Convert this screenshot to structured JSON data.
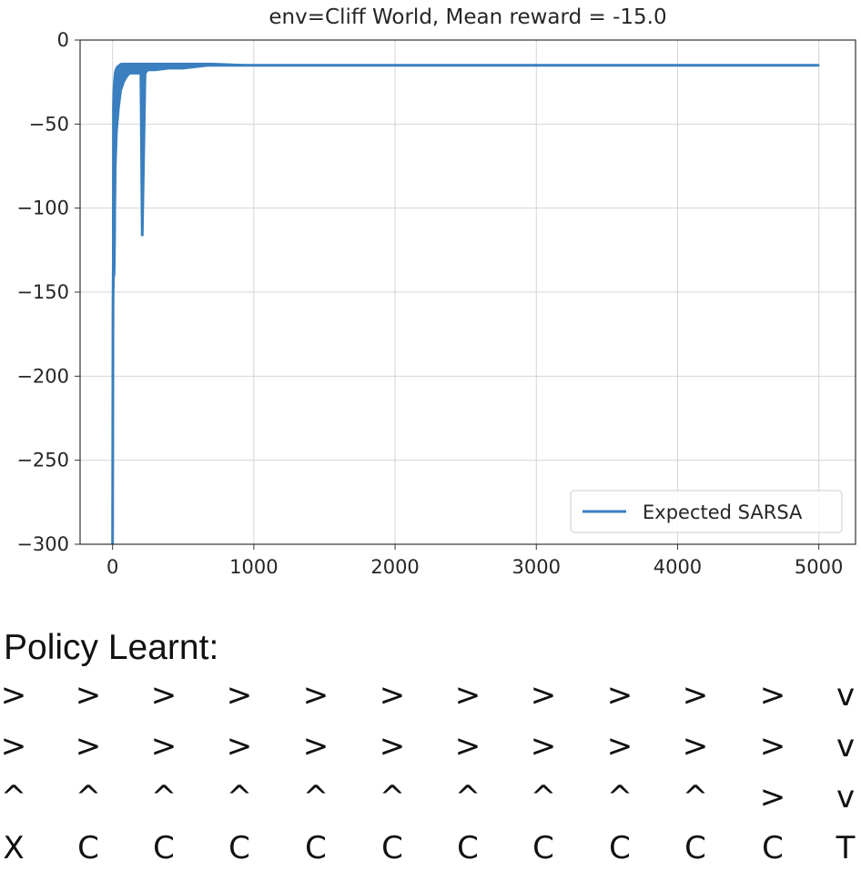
{
  "chart_data": {
    "type": "line",
    "title": "env=Cliff World, Mean reward = -15.0",
    "xlabel": "",
    "ylabel": "",
    "xlim": [
      -230,
      5260
    ],
    "ylim": [
      -300,
      0
    ],
    "x_ticks": [
      0,
      1000,
      2000,
      3000,
      4000,
      5000
    ],
    "y_ticks": [
      0,
      -50,
      -100,
      -150,
      -200,
      -250,
      -300
    ],
    "x_tick_labels": [
      "0",
      "1000",
      "2000",
      "3000",
      "4000",
      "5000"
    ],
    "y_tick_labels": [
      "0",
      "−50",
      "−100",
      "−150",
      "−200",
      "−250",
      "−300"
    ],
    "grid": true,
    "legend_position": "lower-right",
    "series": [
      {
        "name": "Expected SARSA",
        "color": "#3a7fbf",
        "x": [
          0,
          3,
          6,
          10,
          15,
          20,
          30,
          45,
          60,
          80,
          100,
          120,
          150,
          200,
          210,
          230,
          250,
          300,
          400,
          500,
          600,
          700,
          1000,
          2000,
          3000,
          4000,
          5000
        ],
        "y": [
          -300,
          -160,
          -120,
          -140,
          -100,
          -60,
          -35,
          -25,
          -20,
          -18,
          -17,
          -16,
          -16,
          -16,
          -116,
          -18,
          -16,
          -16,
          -15,
          -15,
          -15,
          -15,
          -15,
          -15,
          -15,
          -15,
          -15
        ],
        "y_min": [
          -300,
          -160,
          -150,
          -140,
          -135,
          -80,
          -55,
          -40,
          -30,
          -25,
          -22,
          -20,
          -20,
          -20,
          -116,
          -20,
          -18,
          -18,
          -17,
          -17,
          -16,
          -15,
          -15,
          -15,
          -15,
          -15,
          -15
        ],
        "y_max": [
          -300,
          -40,
          -30,
          -25,
          -20,
          -18,
          -16,
          -15,
          -14,
          -14,
          -14,
          -14,
          -14,
          -14,
          -14,
          -14,
          -14,
          -14,
          -14,
          -14,
          -14,
          -14,
          -15,
          -15,
          -15,
          -15,
          -15
        ]
      }
    ]
  },
  "policy": {
    "title": "Policy Learnt:",
    "rows": [
      [
        ">",
        ">",
        ">",
        ">",
        ">",
        ">",
        ">",
        ">",
        ">",
        ">",
        ">",
        "v"
      ],
      [
        ">",
        ">",
        ">",
        ">",
        ">",
        ">",
        ">",
        ">",
        ">",
        ">",
        ">",
        "v"
      ],
      [
        "^",
        "^",
        "^",
        "^",
        "^",
        "^",
        "^",
        "^",
        "^",
        "^",
        ">",
        "v"
      ],
      [
        "X",
        "C",
        "C",
        "C",
        "C",
        "C",
        "C",
        "C",
        "C",
        "C",
        "C",
        "T"
      ]
    ]
  }
}
